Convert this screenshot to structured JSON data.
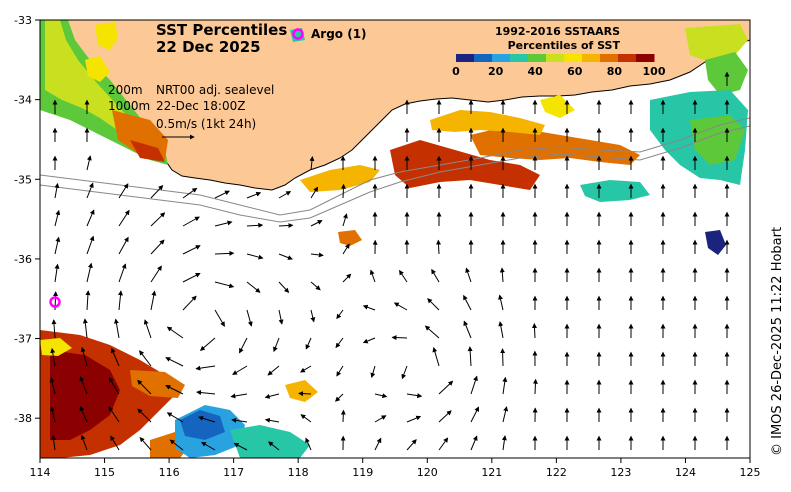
{
  "title": {
    "line1": "SST Percentiles",
    "line2": "22 Dec 2025"
  },
  "argo": {
    "label": "Argo (1)",
    "marker": "O",
    "color": "#ff00ff"
  },
  "legend": {
    "title1": "1992-2016 SSTAARS",
    "title2": "Percentiles of SST",
    "ticks": [
      "0",
      "20",
      "40",
      "60",
      "80",
      "100"
    ],
    "colors": [
      "#1a237e",
      "#1565c0",
      "#29a3e0",
      "#26c6a6",
      "#5cc83a",
      "#c8e020",
      "#f5e400",
      "#f5b400",
      "#e07000",
      "#c43000",
      "#8b0000"
    ]
  },
  "annotations": {
    "depth_200": "200m",
    "depth_1000": "1000m",
    "currents_label": "NRT00 adj. sealevel",
    "currents_time": "22-Dec 18:00Z",
    "vector_scale": "0.5m/s (1kt 24h)"
  },
  "axes": {
    "x_ticks": [
      "114",
      "115",
      "116",
      "117",
      "118",
      "119",
      "120",
      "121",
      "122",
      "123",
      "124",
      "125"
    ],
    "y_ticks": [
      "-33",
      "-34",
      "-35",
      "-36",
      "-37",
      "-38"
    ],
    "xlim": [
      114,
      125
    ],
    "ylim": [
      -38.5,
      -33
    ]
  },
  "credit": "© IMOS 26-Dec-2025 11:22 Hobart",
  "colors": {
    "land": "#fcc896",
    "ocean": "#ffffff",
    "frame": "#000000"
  }
}
